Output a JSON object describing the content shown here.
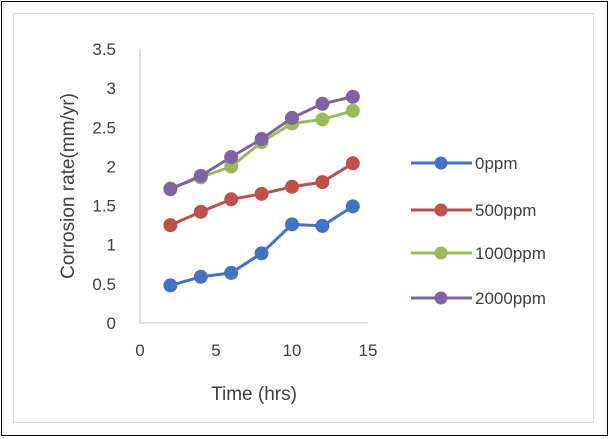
{
  "chart_data": {
    "type": "line",
    "title": "",
    "xlabel": "Time (hrs)",
    "ylabel": "Corrosion rate(mm/yr)",
    "xlim": [
      0,
      15
    ],
    "ylim": [
      0,
      3.5
    ],
    "x_ticks": [
      "0",
      "5",
      "10",
      "15"
    ],
    "y_ticks": [
      "0",
      "0.5",
      "1",
      "1.5",
      "2",
      "2.5",
      "3",
      "3.5"
    ],
    "grid": false,
    "legend_position": "right",
    "x": [
      2,
      4,
      6,
      8,
      10,
      12,
      14
    ],
    "series": [
      {
        "name": "0ppm",
        "color": "#4472c4",
        "values": [
          0.48,
          0.59,
          0.64,
          0.89,
          1.26,
          1.24,
          1.49
        ]
      },
      {
        "name": "500ppm",
        "color": "#c0504d",
        "values": [
          1.25,
          1.42,
          1.58,
          1.65,
          1.74,
          1.8,
          2.04
        ]
      },
      {
        "name": "1000ppm",
        "color": "#9bbb59",
        "values": [
          1.72,
          1.86,
          2.0,
          2.31,
          2.55,
          2.6,
          2.71
        ]
      },
      {
        "name": "2000ppm",
        "color": "#8064a2",
        "values": [
          1.71,
          1.88,
          2.12,
          2.35,
          2.62,
          2.8,
          2.89
        ]
      }
    ]
  }
}
